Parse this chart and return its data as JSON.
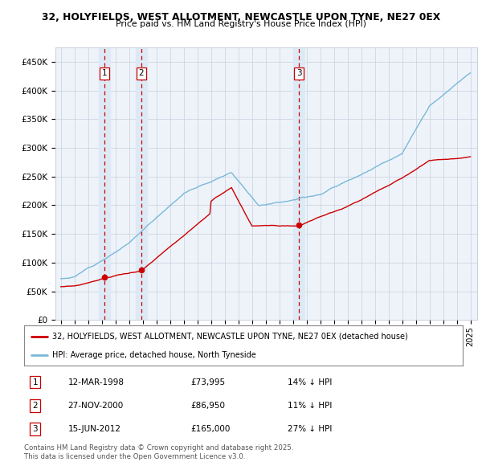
{
  "title_line1": "32, HOLYFIELDS, WEST ALLOTMENT, NEWCASTLE UPON TYNE, NE27 0EX",
  "title_line2": "Price paid vs. HM Land Registry's House Price Index (HPI)",
  "red_label": "32, HOLYFIELDS, WEST ALLOTMENT, NEWCASTLE UPON TYNE, NE27 0EX (detached house)",
  "blue_label": "HPI: Average price, detached house, North Tyneside",
  "footer": "Contains HM Land Registry data © Crown copyright and database right 2025.\nThis data is licensed under the Open Government Licence v3.0.",
  "sales": [
    {
      "num": 1,
      "date_num": 1998.19,
      "price": 73995,
      "label": "1",
      "date_str": "12-MAR-1998",
      "pct": "14% ↓ HPI"
    },
    {
      "num": 2,
      "date_num": 2000.9,
      "price": 86950,
      "label": "2",
      "date_str": "27-NOV-2000",
      "pct": "11% ↓ HPI"
    },
    {
      "num": 3,
      "date_num": 2012.45,
      "price": 165000,
      "label": "3",
      "date_str": "15-JUN-2012",
      "pct": "27% ↓ HPI"
    }
  ],
  "hpi_color": "#7ab8d9",
  "price_color": "#cc0000",
  "vline_color": "#cc0000",
  "highlight_color": "#ddeaf5",
  "background_color": "#eef3fa",
  "grid_color": "#c8d0dc",
  "ylim": [
    0,
    475000
  ],
  "yticks": [
    0,
    50000,
    100000,
    150000,
    200000,
    250000,
    300000,
    350000,
    400000,
    450000
  ],
  "xlim": [
    1994.6,
    2025.5
  ],
  "xtick_start": 1995,
  "xtick_end": 2025
}
